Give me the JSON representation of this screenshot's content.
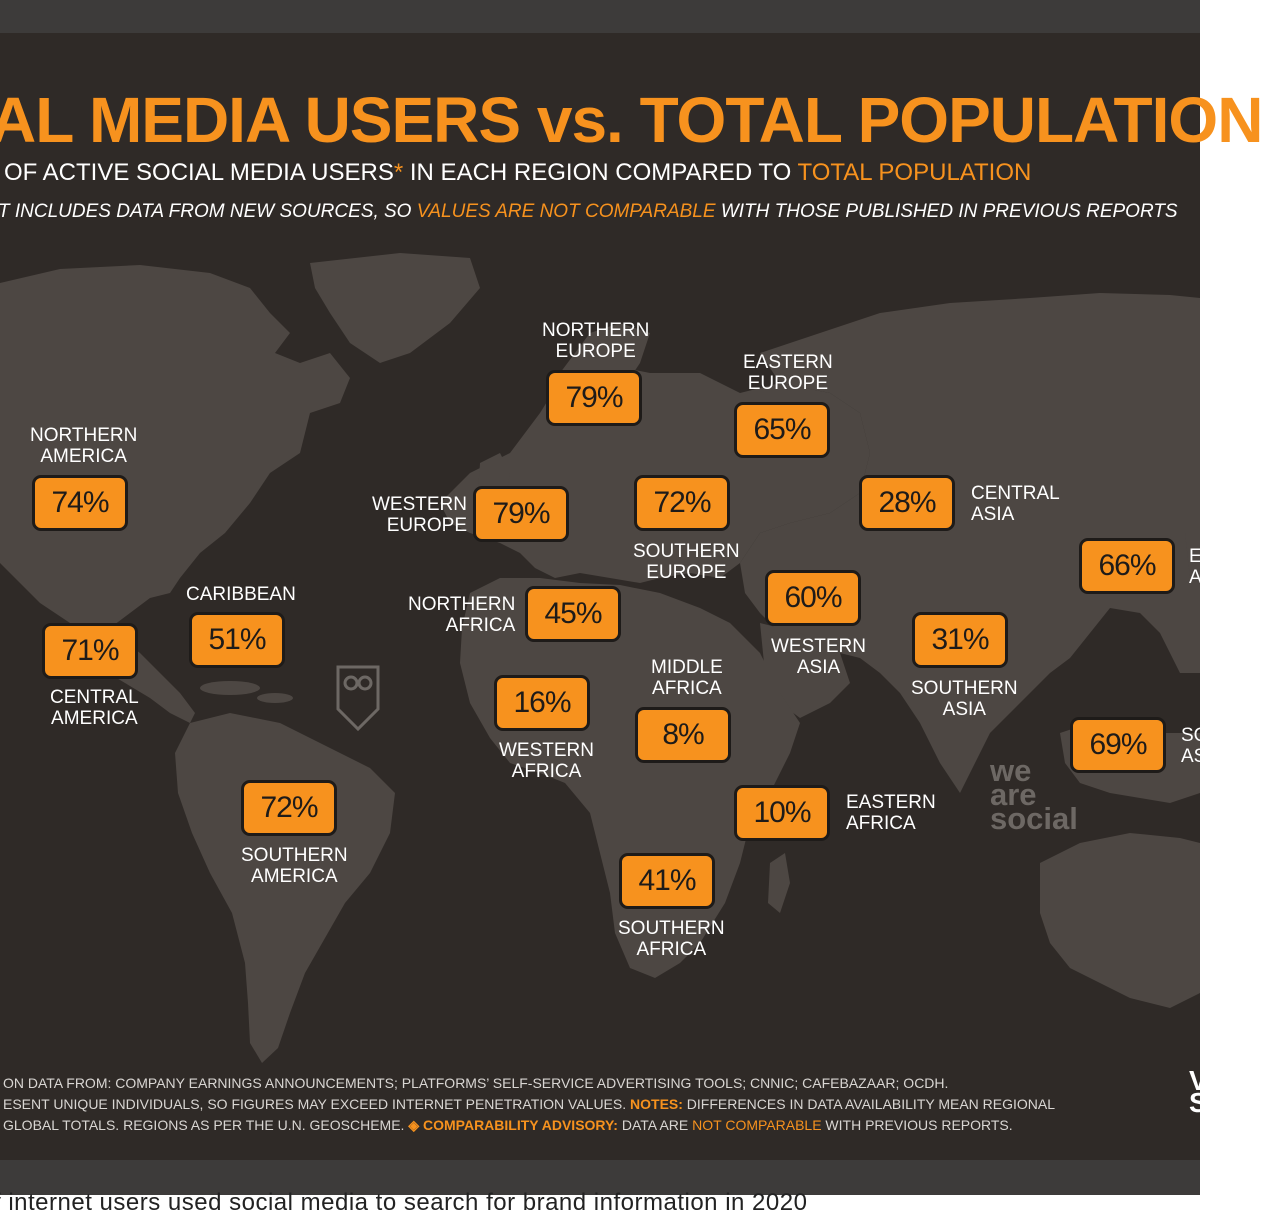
{
  "title": "AL MEDIA USERS vs. TOTAL POPULATION",
  "subtitle": {
    "part1": "OF ACTIVE SOCIAL MEDIA USERS",
    "asterisk": "*",
    "part2": " IN EACH REGION COMPARED TO ",
    "highlight": "TOTAL POPULATION"
  },
  "note": {
    "part1": "T INCLUDES DATA FROM NEW SOURCES, SO ",
    "highlight": "VALUES ARE NOT COMPARABLE",
    "part2": " WITH THOSE PUBLISHED IN PREVIOUS REPORTS"
  },
  "regions": {
    "northern_america": {
      "line1": "NORTHERN",
      "line2": "AMERICA",
      "value": "74%"
    },
    "central_america": {
      "line1": "CENTRAL",
      "line2": "AMERICA",
      "value": "71%"
    },
    "caribbean": {
      "line1": "CARIBBEAN",
      "value": "51%"
    },
    "southern_america": {
      "line1": "SOUTHERN",
      "line2": "AMERICA",
      "value": "72%"
    },
    "northern_europe": {
      "line1": "NORTHERN",
      "line2": "EUROPE",
      "value": "79%"
    },
    "western_europe": {
      "line1": "WESTERN",
      "line2": "EUROPE",
      "value": "79%"
    },
    "southern_europe": {
      "line1": "SOUTHERN",
      "line2": "EUROPE",
      "value": "72%"
    },
    "eastern_europe": {
      "line1": "EASTERN",
      "line2": "EUROPE",
      "value": "65%"
    },
    "northern_africa": {
      "line1": "NORTHERN",
      "line2": "AFRICA",
      "value": "45%"
    },
    "western_africa": {
      "line1": "WESTERN",
      "line2": "AFRICA",
      "value": "16%"
    },
    "middle_africa": {
      "line1": "MIDDLE",
      "line2": "AFRICA",
      "value": "8%"
    },
    "eastern_africa": {
      "line1": "EASTERN",
      "line2": "AFRICA",
      "value": "10%"
    },
    "southern_africa": {
      "line1": "SOUTHERN",
      "line2": "AFRICA",
      "value": "41%"
    },
    "western_asia": {
      "line1": "WESTERN",
      "line2": "ASIA",
      "value": "60%"
    },
    "central_asia": {
      "line1": "CENTRAL",
      "line2": "ASIA",
      "value": "28%"
    },
    "southern_asia": {
      "line1": "SOUTHERN",
      "line2": "ASIA",
      "value": "31%"
    },
    "eastern_asia": {
      "line1": "E",
      "line2": "A",
      "value": "66%"
    },
    "south_eastern_asia": {
      "line1": "SO",
      "line2": "AS",
      "value": "69%"
    }
  },
  "footer": {
    "line1": "ON DATA FROM: COMPANY EARNINGS ANNOUNCEMENTS; PLATFORMS’ SELF-SERVICE ADVERTISING TOOLS; CNNIC; CAFEBAZAAR; OCDH.",
    "line2a": "ESENT UNIQUE INDIVIDUALS, SO FIGURES MAY EXCEED INTERNET PENETRATION VALUES. ",
    "line2_notes": "NOTES:",
    "line2b": " DIFFERENCES IN DATA AVAILABILITY MEAN REGIONAL",
    "line3a": "GLOBAL TOTALS. REGIONS AS PER THE U.N. GEOSCHEME. ",
    "line3_advisory": "◈ COMPARABILITY ADVISORY:",
    "line3b": " DATA ARE ",
    "line3_nc": "NOT COMPARABLE",
    "line3c": " WITH PREVIOUS REPORTS."
  },
  "watermark": {
    "line1": "we",
    "line2": "are",
    "line3": "social"
  },
  "side_logo": {
    "line1": "V",
    "line2": "S"
  },
  "below_text": "f internet users used social media to search for brand information in 2020",
  "colors": {
    "accent": "#f7921e",
    "background": "#2f2a27",
    "land": "#4e4844"
  }
}
